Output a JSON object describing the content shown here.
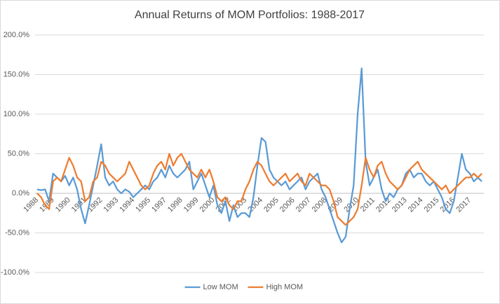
{
  "chart_data": {
    "type": "line",
    "title": "Annual Returns of MOM Portfolios: 1988-2017",
    "categories": [
      "1988",
      null,
      null,
      null,
      "1989",
      null,
      null,
      null,
      "1990",
      null,
      null,
      null,
      "1991",
      null,
      null,
      null,
      "1992",
      null,
      null,
      null,
      "1993",
      null,
      null,
      null,
      "1994",
      null,
      null,
      null,
      "1995",
      null,
      null,
      null,
      "1997",
      null,
      null,
      null,
      "1998",
      null,
      null,
      null,
      "1999",
      null,
      null,
      null,
      "2000",
      null,
      null,
      null,
      "2002",
      null,
      null,
      null,
      "2003",
      null,
      null,
      null,
      "2004",
      null,
      null,
      null,
      "2005",
      null,
      null,
      null,
      "2006",
      null,
      null,
      null,
      "2007",
      null,
      null,
      null,
      "2008",
      null,
      null,
      null,
      "2009",
      null,
      null,
      null,
      "2010",
      null,
      null,
      null,
      "2011",
      null,
      null,
      null,
      "2012",
      null,
      null,
      null,
      "2013",
      null,
      null,
      null,
      "2014",
      null,
      null,
      null,
      "2015",
      null,
      null,
      null,
      "2016",
      null,
      null,
      null,
      "2017",
      null,
      null,
      null
    ],
    "series": [
      {
        "name": "Low MOM",
        "color": "#5b9bd5",
        "values": [
          5,
          4,
          5,
          -10,
          25,
          20,
          15,
          22,
          10,
          20,
          5,
          -20,
          -38,
          -15,
          10,
          35,
          62,
          20,
          10,
          15,
          5,
          0,
          5,
          2,
          -5,
          0,
          5,
          10,
          5,
          15,
          20,
          30,
          20,
          35,
          25,
          20,
          25,
          30,
          40,
          5,
          15,
          25,
          10,
          -5,
          10,
          -15,
          -25,
          -10,
          -35,
          -15,
          -30,
          -25,
          -25,
          -30,
          -5,
          35,
          70,
          65,
          30,
          20,
          15,
          10,
          15,
          5,
          10,
          15,
          20,
          5,
          15,
          20,
          25,
          5,
          -5,
          -20,
          -35,
          -50,
          -62,
          -55,
          -20,
          10,
          100,
          158,
          40,
          10,
          20,
          30,
          5,
          -10,
          0,
          -5,
          5,
          10,
          25,
          30,
          20,
          25,
          25,
          15,
          10,
          15,
          5,
          -5,
          -20,
          -25,
          -10,
          20,
          50,
          30,
          25,
          15,
          20,
          15
        ]
      },
      {
        "name": "High MOM",
        "color": "#ed7d31",
        "values": [
          0,
          -5,
          -15,
          -20,
          15,
          20,
          15,
          30,
          45,
          35,
          20,
          15,
          -10,
          -5,
          15,
          20,
          40,
          35,
          25,
          20,
          15,
          20,
          25,
          40,
          30,
          20,
          10,
          5,
          10,
          25,
          35,
          40,
          30,
          50,
          35,
          45,
          50,
          40,
          30,
          25,
          20,
          30,
          20,
          30,
          15,
          -5,
          -10,
          -5,
          -15,
          -20,
          -10,
          -10,
          5,
          15,
          30,
          40,
          35,
          25,
          15,
          10,
          15,
          20,
          25,
          15,
          20,
          25,
          15,
          10,
          25,
          20,
          15,
          10,
          10,
          5,
          -10,
          -30,
          -35,
          -40,
          -35,
          -30,
          -20,
          10,
          45,
          30,
          20,
          35,
          40,
          25,
          15,
          10,
          5,
          10,
          20,
          30,
          35,
          40,
          30,
          25,
          20,
          15,
          10,
          5,
          10,
          0,
          5,
          10,
          15,
          20,
          20,
          25,
          20,
          25
        ]
      }
    ],
    "ylim": [
      -100,
      200
    ],
    "yticks": [
      {
        "value": -100,
        "label": "-100.0%"
      },
      {
        "value": -50,
        "label": "-50.0%"
      },
      {
        "value": 0,
        "label": "0.0%"
      },
      {
        "value": 50,
        "label": "50.0%"
      },
      {
        "value": 100,
        "label": "100.0%"
      },
      {
        "value": 150,
        "label": "150.0%"
      },
      {
        "value": 200,
        "label": "200.0%"
      }
    ],
    "grid": true,
    "legend": "bottom"
  }
}
